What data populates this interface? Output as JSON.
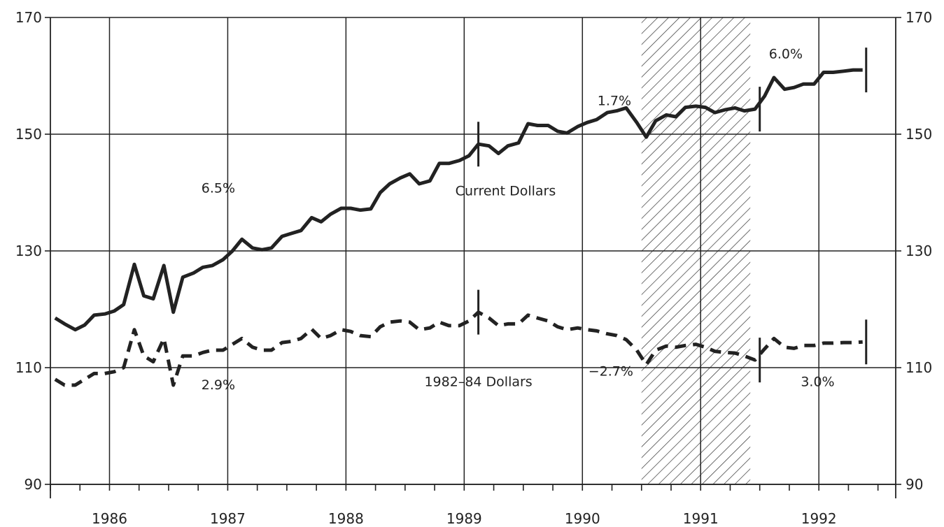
{
  "chart_data": {
    "type": "line",
    "title": "",
    "xlabel": "",
    "ylabel": "",
    "ylim": [
      90,
      170
    ],
    "y_ticks": [
      "90",
      "110",
      "130",
      "150",
      "170"
    ],
    "x_range": [
      1985.5,
      1992.65
    ],
    "year_labels": [
      "1986",
      "1987",
      "1988",
      "1989",
      "1990",
      "1991",
      "1992"
    ],
    "grid": true,
    "recession_shading": [
      1990.5,
      1991.42
    ],
    "series": [
      {
        "name": "Current Dollars",
        "style": "solid",
        "x": [
          1985.54,
          1985.62,
          1985.71,
          1985.79,
          1985.87,
          1985.96,
          1986.04,
          1986.12,
          1986.21,
          1986.29,
          1986.37,
          1986.46,
          1986.54,
          1986.62,
          1986.71,
          1986.79,
          1986.87,
          1986.96,
          1987.04,
          1987.12,
          1987.21,
          1987.29,
          1987.37,
          1987.46,
          1987.54,
          1987.62,
          1987.71,
          1987.79,
          1987.87,
          1987.96,
          1988.04,
          1988.12,
          1988.21,
          1988.29,
          1988.37,
          1988.46,
          1988.54,
          1988.62,
          1988.71,
          1988.79,
          1988.87,
          1988.96,
          1989.04,
          1989.12,
          1989.21,
          1989.29,
          1989.37,
          1989.46,
          1989.54,
          1989.62,
          1989.71,
          1989.79,
          1989.87,
          1989.96,
          1990.04,
          1990.12,
          1990.21,
          1990.29,
          1990.37,
          1990.46,
          1990.54,
          1990.62,
          1990.71,
          1990.79,
          1990.87,
          1990.96,
          1991.04,
          1991.12,
          1991.21,
          1991.29,
          1991.37,
          1991.46,
          1991.54,
          1991.62,
          1991.71,
          1991.79,
          1991.87,
          1991.96,
          1992.04,
          1992.12,
          1992.21,
          1992.29,
          1992.37
        ],
        "values": [
          118.5,
          117.5,
          116.5,
          117.3,
          119,
          119.2,
          119.7,
          120.8,
          127.7,
          122.3,
          121.8,
          127.5,
          119.5,
          125.5,
          126.2,
          127.2,
          127.5,
          128.5,
          130,
          132,
          130.5,
          130.2,
          130.5,
          132.5,
          133,
          133.5,
          135.7,
          135,
          136.3,
          137.3,
          137.3,
          137,
          137.2,
          140,
          141.5,
          142.5,
          143.2,
          141.5,
          142,
          145,
          145,
          145.5,
          146.3,
          148.3,
          148,
          146.7,
          148,
          148.5,
          151.8,
          151.5,
          151.5,
          150.5,
          150.2,
          151.3,
          152,
          152.5,
          153.7,
          154,
          154.5,
          152,
          149.5,
          152.3,
          153.3,
          153,
          154.6,
          154.8,
          154.6,
          153.7,
          154.2,
          154.5,
          154,
          154.3,
          156.5,
          159.7,
          157.7,
          158,
          158.6,
          158.6,
          160.6,
          160.6,
          160.8,
          161,
          161
        ]
      },
      {
        "name": "1982–84 Dollars",
        "style": "dashed",
        "x": [
          1985.54,
          1985.62,
          1985.71,
          1985.79,
          1985.87,
          1985.96,
          1986.04,
          1986.12,
          1986.21,
          1986.29,
          1986.37,
          1986.46,
          1986.54,
          1986.62,
          1986.71,
          1986.79,
          1986.87,
          1986.96,
          1987.04,
          1987.12,
          1987.21,
          1987.29,
          1987.37,
          1987.46,
          1987.54,
          1987.62,
          1987.71,
          1987.79,
          1987.87,
          1987.96,
          1988.04,
          1988.12,
          1988.21,
          1988.29,
          1988.37,
          1988.46,
          1988.54,
          1988.62,
          1988.71,
          1988.79,
          1988.87,
          1988.96,
          1989.04,
          1989.12,
          1989.21,
          1989.29,
          1989.37,
          1989.46,
          1989.54,
          1989.62,
          1989.71,
          1989.79,
          1989.87,
          1989.96,
          1990.04,
          1990.12,
          1990.21,
          1990.29,
          1990.37,
          1990.46,
          1990.54,
          1990.62,
          1990.71,
          1990.79,
          1990.87,
          1990.96,
          1991.04,
          1991.12,
          1991.21,
          1991.29,
          1991.37,
          1991.46,
          1991.54,
          1991.62,
          1991.71,
          1991.79,
          1991.87,
          1991.96,
          1992.04,
          1992.12,
          1992.21,
          1992.29,
          1992.37
        ],
        "values": [
          108,
          107,
          107,
          108,
          109,
          109,
          109.3,
          110,
          116.5,
          112,
          111,
          115,
          107,
          112,
          112,
          112.6,
          113,
          113,
          114,
          115,
          113.5,
          113,
          113,
          114.3,
          114.5,
          115,
          116.6,
          115,
          115.5,
          116.5,
          116.2,
          115.5,
          115.3,
          117,
          117.8,
          118,
          117.8,
          116.5,
          116.8,
          117.8,
          117.2,
          117.2,
          118,
          119.5,
          118.5,
          117.2,
          117.5,
          117.5,
          119,
          118.5,
          118,
          117,
          116.5,
          116.8,
          116.5,
          116.3,
          115.8,
          115.5,
          114.8,
          113,
          110.5,
          113,
          113.7,
          113.5,
          113.8,
          114,
          113.5,
          112.8,
          112.6,
          112.5,
          112,
          111.3,
          113.2,
          115,
          113.5,
          113.3,
          113.8,
          113.8,
          114.2,
          114.2,
          114.3,
          114.3,
          114.4
        ]
      }
    ],
    "period_markers": [
      1989.12,
      1991.5,
      1992.4
    ],
    "annotations": [
      {
        "text": "6.5%",
        "x": 1986.92,
        "y": 140,
        "anchor": "middle"
      },
      {
        "text": "2.9%",
        "x": 1986.92,
        "y": 106.3,
        "anchor": "middle"
      },
      {
        "text": "Current Dollars",
        "x": 1989.35,
        "y": 139.5,
        "anchor": "middle"
      },
      {
        "text": "1982–84 Dollars",
        "x": 1989.12,
        "y": 106.8,
        "anchor": "middle"
      },
      {
        "text": "1.7%",
        "x": 1990.27,
        "y": 155,
        "anchor": "middle"
      },
      {
        "text": "−2.7%",
        "x": 1990.24,
        "y": 108.6,
        "anchor": "middle"
      },
      {
        "text": "6.0%",
        "x": 1991.72,
        "y": 163,
        "anchor": "middle"
      },
      {
        "text": "3.0%",
        "x": 1991.99,
        "y": 106.8,
        "anchor": "middle"
      }
    ]
  }
}
